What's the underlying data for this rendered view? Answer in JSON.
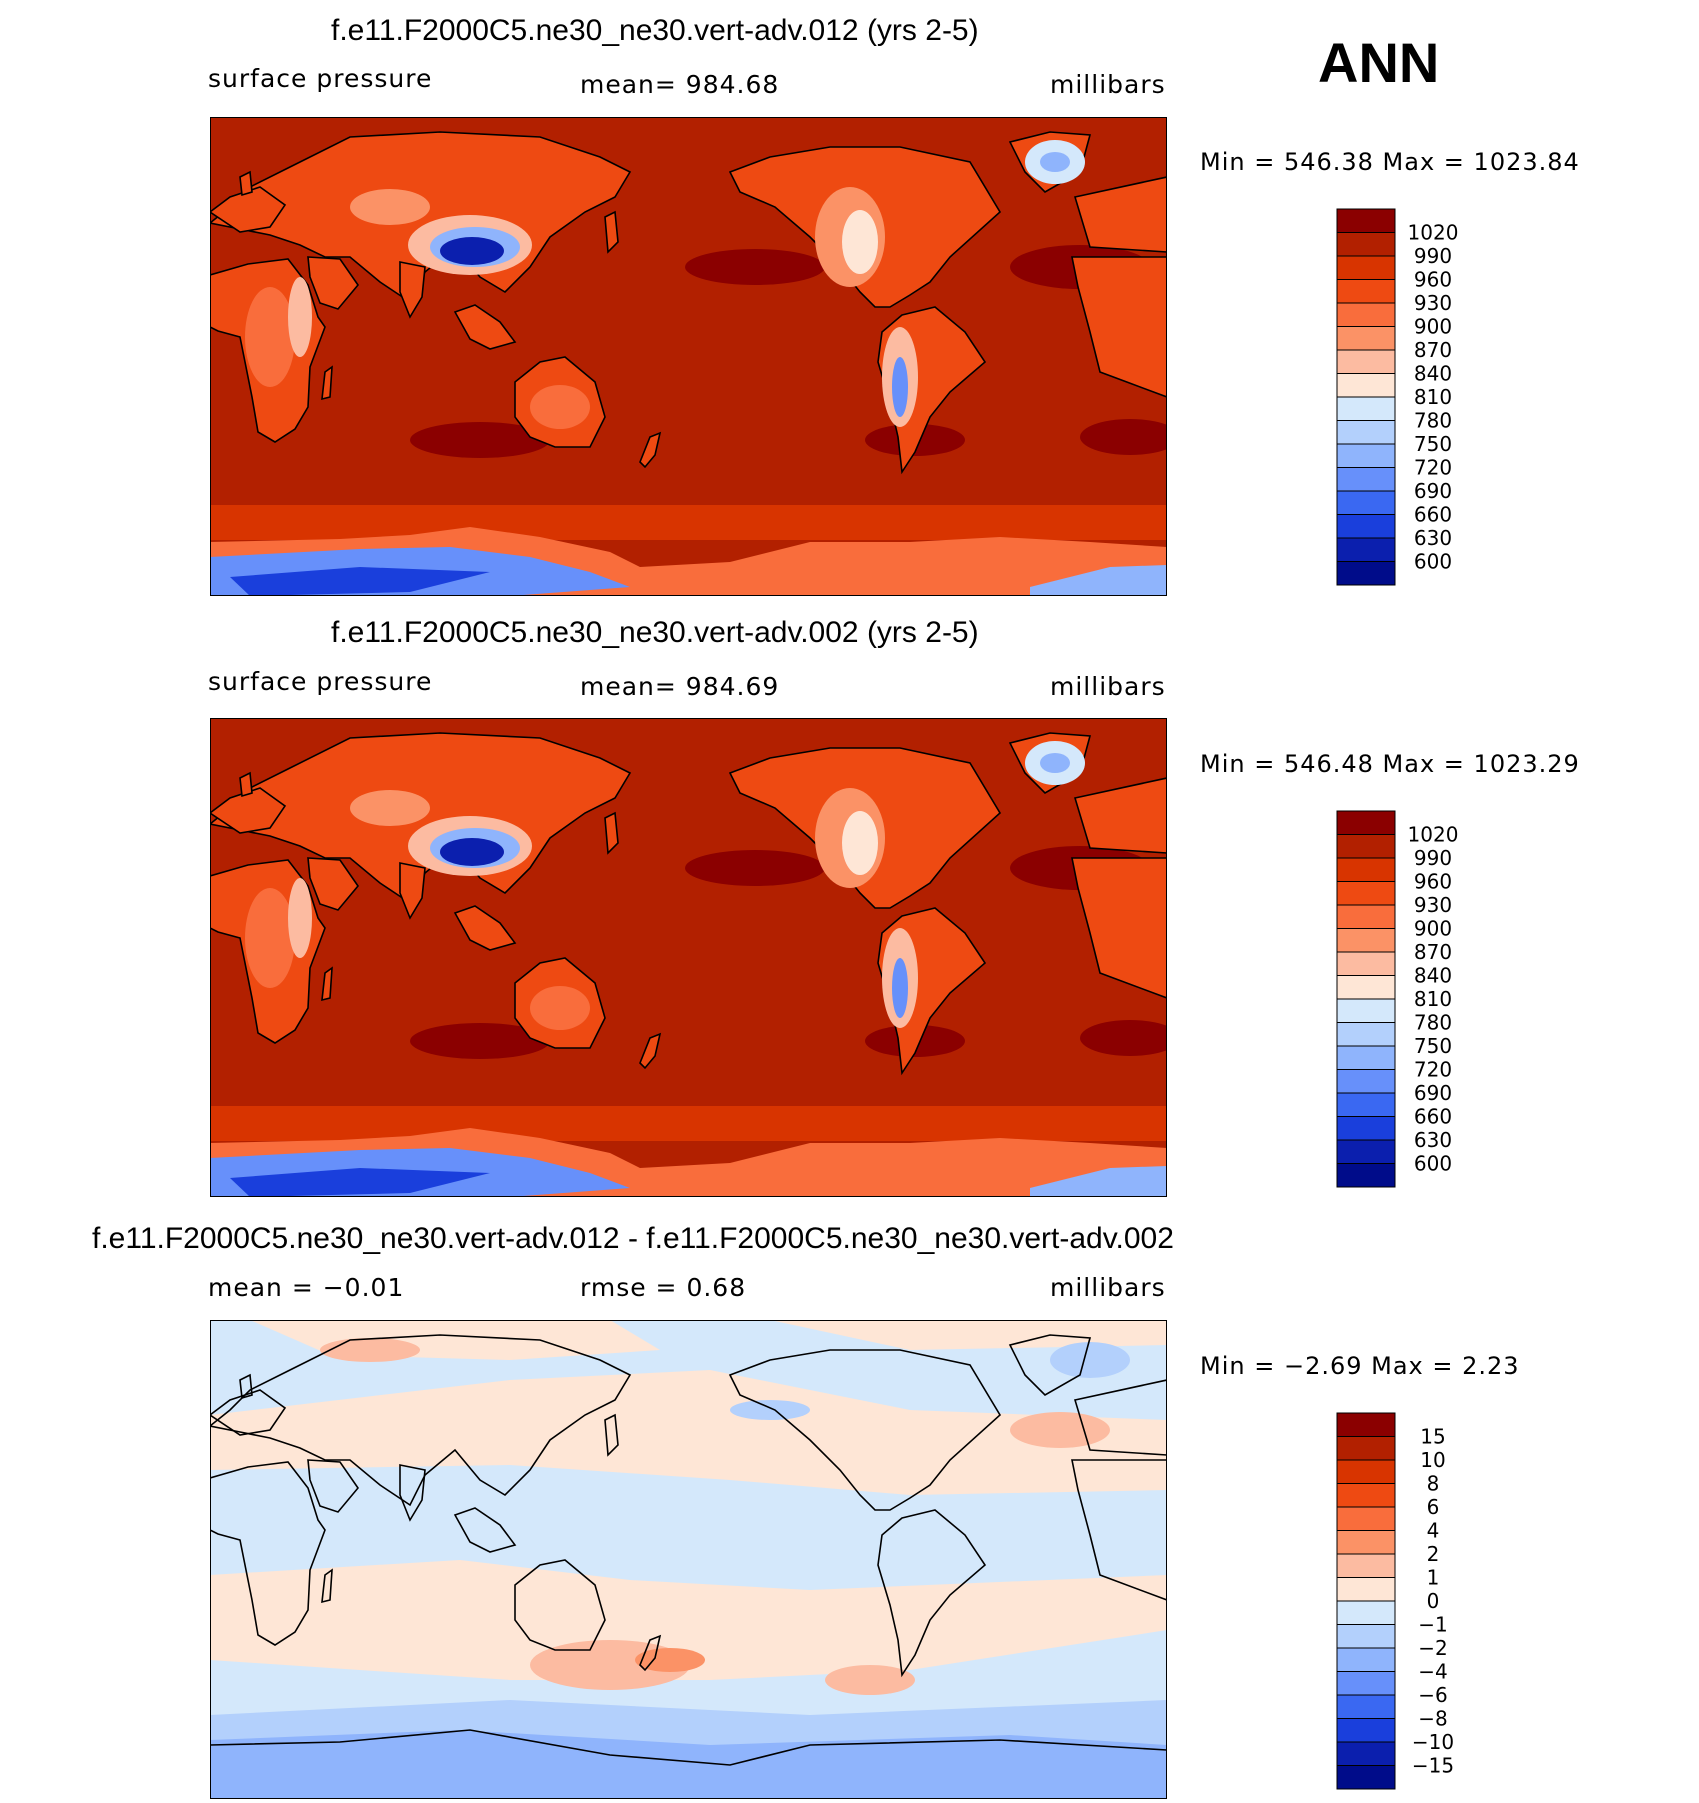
{
  "season": "ANN",
  "panels": [
    {
      "title": "f.e11.F2000C5.ne30_ne30.vert-adv.012 (yrs 2-5)",
      "left_label": "surface  pressure",
      "center_label": "mean=  984.68",
      "units": "millibars",
      "min_max": "Min  =  546.38  Max  =  1023.84",
      "colorbar": {
        "labels": [
          "1020",
          "990",
          "960",
          "930",
          "900",
          "870",
          "840",
          "810",
          "780",
          "750",
          "720",
          "690",
          "660",
          "630",
          "600"
        ],
        "colors": [
          "#8b0000",
          "#b22000",
          "#d83400",
          "#ee4a12",
          "#f96d3c",
          "#fb9266",
          "#fcbba1",
          "#fee6d6",
          "#d4e8fb",
          "#b3d0fc",
          "#8fb4fc",
          "#6790fa",
          "#3a68f2",
          "#1a3fdc",
          "#0b1fae",
          "#000c8a"
        ]
      },
      "field": "pressure"
    },
    {
      "title": "f.e11.F2000C5.ne30_ne30.vert-adv.002 (yrs 2-5)",
      "left_label": "surface  pressure",
      "center_label": "mean=  984.69",
      "units": "millibars",
      "min_max": "Min  =  546.48  Max  =  1023.29",
      "colorbar": {
        "labels": [
          "1020",
          "990",
          "960",
          "930",
          "900",
          "870",
          "840",
          "810",
          "780",
          "750",
          "720",
          "690",
          "660",
          "630",
          "600"
        ],
        "colors": [
          "#8b0000",
          "#b22000",
          "#d83400",
          "#ee4a12",
          "#f96d3c",
          "#fb9266",
          "#fcbba1",
          "#fee6d6",
          "#d4e8fb",
          "#b3d0fc",
          "#8fb4fc",
          "#6790fa",
          "#3a68f2",
          "#1a3fdc",
          "#0b1fae",
          "#000c8a"
        ]
      },
      "field": "pressure"
    },
    {
      "title": "f.e11.F2000C5.ne30_ne30.vert-adv.012 - f.e11.F2000C5.ne30_ne30.vert-adv.002",
      "left_label": "mean  =   −0.01",
      "center_label": "rmse  =     0.68",
      "units": "millibars",
      "min_max": "Min  =   −2.69  Max  =     2.23",
      "colorbar": {
        "labels": [
          "15",
          "10",
          "8",
          "6",
          "4",
          "2",
          "1",
          "0",
          "−1",
          "−2",
          "−4",
          "−6",
          "−8",
          "−10",
          "−15"
        ],
        "colors": [
          "#8b0000",
          "#b22000",
          "#d83400",
          "#ee4a12",
          "#f96d3c",
          "#fb9266",
          "#fcbba1",
          "#fee6d6",
          "#d4e8fb",
          "#b3d0fc",
          "#8fb4fc",
          "#6790fa",
          "#3a68f2",
          "#1a3fdc",
          "#0b1fae",
          "#000c8a"
        ]
      },
      "field": "difference"
    }
  ]
}
